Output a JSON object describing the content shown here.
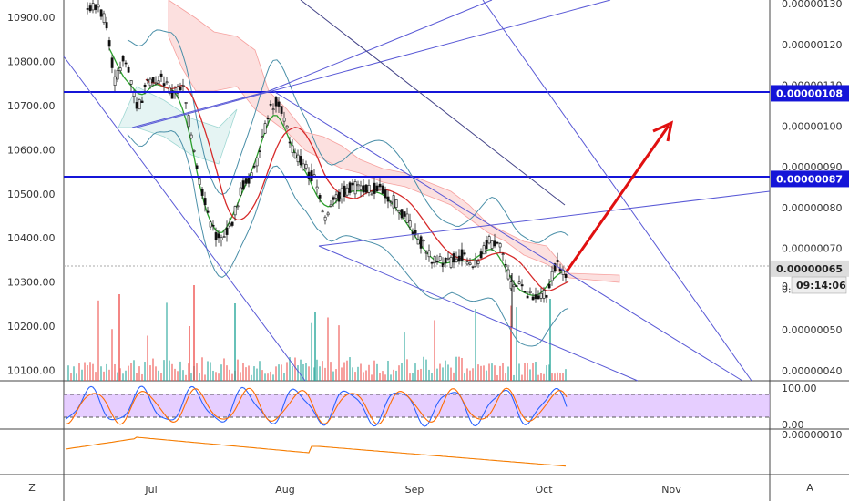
{
  "chart_data": {
    "type": "candlestick",
    "left_axis": {
      "ticks": [
        "10900.00",
        "10800.00",
        "10700.00",
        "10600.00",
        "10500.00",
        "10400.00",
        "10300.00",
        "10200.00",
        "10100.00"
      ],
      "values": [
        10900,
        10800,
        10700,
        10600,
        10500,
        10400,
        10300,
        10200,
        10100
      ]
    },
    "right_axis": {
      "ticks": [
        "0.00000130",
        "0.00000120",
        "0.00000110",
        "0.00000100",
        "0.00000090",
        "0.00000080",
        "0.00000070",
        "0.00000060",
        "0.00000050",
        "0.00000040"
      ],
      "values": [
        130,
        120,
        110,
        100,
        90,
        80,
        70,
        60,
        50,
        40
      ],
      "truncated_tick": "0.",
      "level_tags": [
        {
          "label": "0.00000108",
          "value": 108,
          "style": "blue"
        },
        {
          "label": "0.00000087",
          "value": 87,
          "style": "blue"
        },
        {
          "label": "0.00000065",
          "value": 65,
          "style": "gray"
        }
      ],
      "countdown": "09:14:06"
    },
    "x_axis": {
      "ticks": [
        "Jul",
        "Aug",
        "Sep",
        "Oct",
        "Nov"
      ]
    },
    "stoch_panel": {
      "ticks": [
        "100.00",
        "0.00"
      ],
      "upper_band": 80,
      "lower_band": 20,
      "range": [
        0,
        100
      ]
    },
    "bottom_panel": {
      "ticks": [
        "0.00000010"
      ]
    },
    "corner_labels": {
      "left": "Z",
      "right": "A"
    },
    "colors": {
      "horizontal_levels": "#1515d8",
      "trend_lines": "#5959d6",
      "arrow": "#e01010",
      "bull": "#26a69a",
      "bear": "#ef5350",
      "ma_red": "#d62a2a",
      "ma_green": "#2ca02c",
      "bollinger": "#4a8fa8",
      "stoch_k": "#2962ff",
      "stoch_d": "#ff6d00",
      "stoch_band": "#d9b3ff",
      "indicator_line": "#f57c00"
    }
  }
}
